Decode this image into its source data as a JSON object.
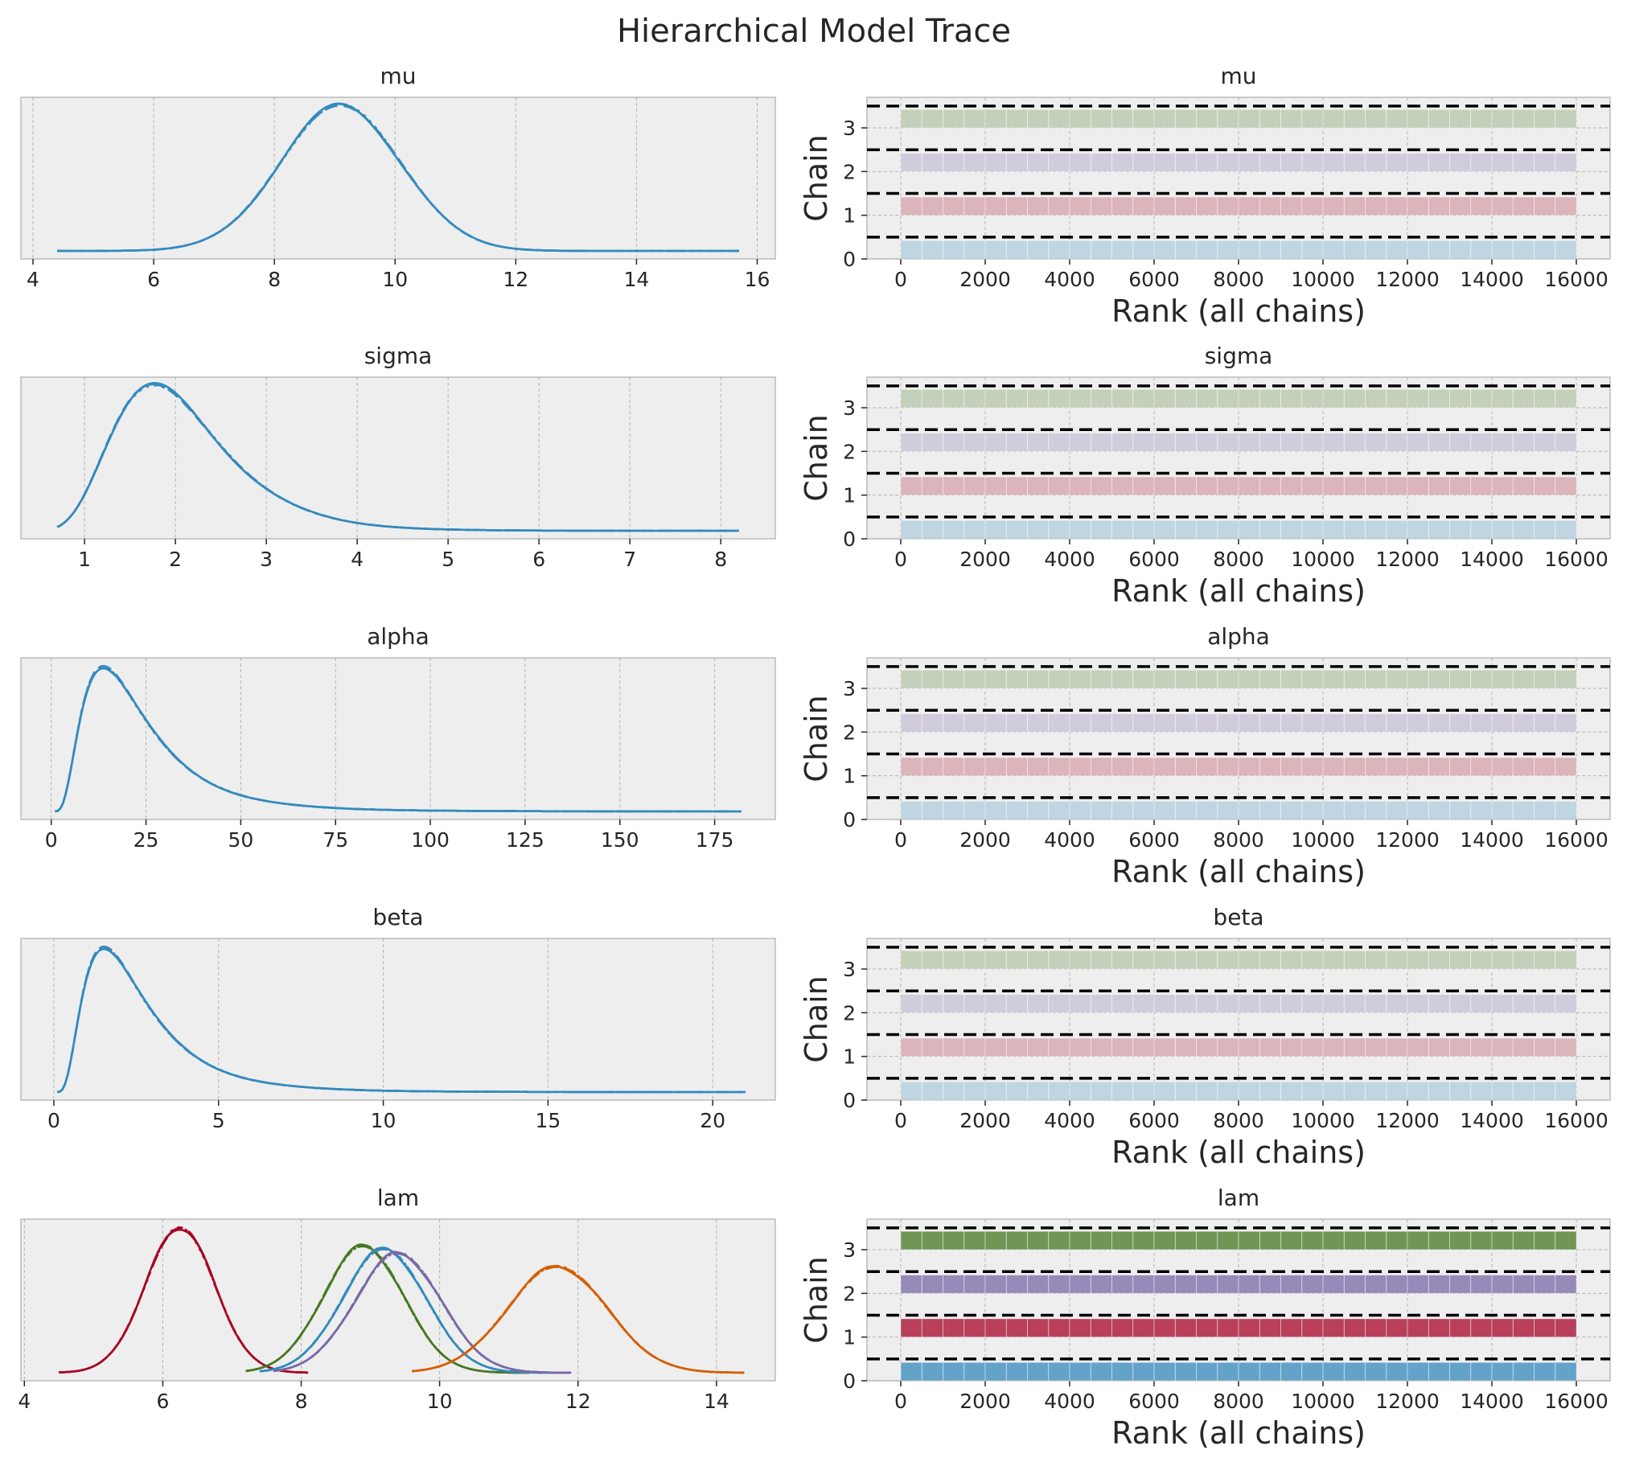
{
  "figure_title": "Hierarchical Model Trace",
  "colors": {
    "axes_bg": "#eeeeee",
    "grid": "#b2b2b2",
    "spine": "#bcbcbc",
    "kde_single": "#348abd",
    "chain_dash": "#000000",
    "chain_fills": [
      "#348abd",
      "#a60628",
      "#7a68a6",
      "#467821"
    ],
    "lam_series": [
      "#a60628",
      "#467821",
      "#348abd",
      "#7a68a6",
      "#d55e00"
    ]
  },
  "chart_data": [
    {
      "type": "line",
      "panel": "kde",
      "title": "mu",
      "xlim": [
        3.8,
        16.3
      ],
      "xticks": [
        4,
        6,
        8,
        10,
        12,
        14,
        16
      ],
      "series": [
        {
          "name": "",
          "dist": "normal",
          "mu": 9.1,
          "sd": 1.0,
          "x": [
            4.4,
            15.7
          ]
        }
      ]
    },
    {
      "type": "bar",
      "panel": "rank",
      "title": "mu",
      "xlabel": "Rank (all chains)",
      "ylabel": "Chain",
      "xlim": [
        -800,
        16800
      ],
      "ylim": [
        0,
        3.7
      ],
      "xticks": [
        0,
        2000,
        4000,
        6000,
        8000,
        10000,
        12000,
        14000,
        16000
      ],
      "yticks": [
        0,
        1,
        2,
        3
      ],
      "chains": [
        0,
        1,
        2,
        3
      ],
      "bar_height": 0.42,
      "bins": 32,
      "opacity": 0.25
    },
    {
      "type": "line",
      "panel": "kde",
      "title": "sigma",
      "xlim": [
        0.3,
        8.6
      ],
      "xticks": [
        1,
        2,
        3,
        4,
        5,
        6,
        7,
        8
      ],
      "series": [
        {
          "name": "",
          "dist": "lognormal",
          "mu": 0.68,
          "sd": 0.34,
          "x": [
            0.7,
            8.2
          ]
        }
      ]
    },
    {
      "type": "bar",
      "panel": "rank",
      "title": "sigma",
      "xlabel": "Rank (all chains)",
      "ylabel": "Chain",
      "xlim": [
        -800,
        16800
      ],
      "ylim": [
        0,
        3.7
      ],
      "xticks": [
        0,
        2000,
        4000,
        6000,
        8000,
        10000,
        12000,
        14000,
        16000
      ],
      "yticks": [
        0,
        1,
        2,
        3
      ],
      "chains": [
        0,
        1,
        2,
        3
      ],
      "bar_height": 0.42,
      "bins": 32,
      "opacity": 0.25
    },
    {
      "type": "line",
      "panel": "kde",
      "title": "alpha",
      "xlim": [
        -8,
        191
      ],
      "xticks": [
        0,
        25,
        50,
        75,
        100,
        125,
        150,
        175
      ],
      "series": [
        {
          "name": "",
          "dist": "lognormal",
          "mu": 3.0,
          "sd": 0.62,
          "x": [
            1,
            182
          ]
        }
      ]
    },
    {
      "type": "bar",
      "panel": "rank",
      "title": "alpha",
      "xlabel": "Rank (all chains)",
      "ylabel": "Chain",
      "xlim": [
        -800,
        16800
      ],
      "ylim": [
        0,
        3.7
      ],
      "xticks": [
        0,
        2000,
        4000,
        6000,
        8000,
        10000,
        12000,
        14000,
        16000
      ],
      "yticks": [
        0,
        1,
        2,
        3
      ],
      "chains": [
        0,
        1,
        2,
        3
      ],
      "bar_height": 0.42,
      "bins": 32,
      "opacity": 0.25
    },
    {
      "type": "line",
      "panel": "kde",
      "title": "beta",
      "xlim": [
        -1,
        21.9
      ],
      "xticks": [
        0,
        5,
        10,
        15,
        20
      ],
      "series": [
        {
          "name": "",
          "dist": "lognormal",
          "mu": 0.8,
          "sd": 0.62,
          "x": [
            0.1,
            21
          ]
        }
      ]
    },
    {
      "type": "bar",
      "panel": "rank",
      "title": "beta",
      "xlabel": "Rank (all chains)",
      "ylabel": "Chain",
      "xlim": [
        -800,
        16800
      ],
      "ylim": [
        0,
        3.7
      ],
      "xticks": [
        0,
        2000,
        4000,
        6000,
        8000,
        10000,
        12000,
        14000,
        16000
      ],
      "yticks": [
        0,
        1,
        2,
        3
      ],
      "chains": [
        0,
        1,
        2,
        3
      ],
      "bar_height": 0.42,
      "bins": 32,
      "opacity": 0.25
    },
    {
      "type": "line",
      "panel": "kde",
      "title": "lam",
      "xlim": [
        3.95,
        14.85
      ],
      "xticks": [
        4,
        6,
        8,
        10,
        12,
        14
      ],
      "series": [
        {
          "name": "",
          "dist": "normal",
          "mu": 6.25,
          "sd": 0.5,
          "x": [
            4.5,
            8.1
          ],
          "peak": 1.0
        },
        {
          "name": "",
          "dist": "normal",
          "mu": 8.9,
          "sd": 0.58,
          "x": [
            7.2,
            11.3
          ],
          "peak": 0.87
        },
        {
          "name": "",
          "dist": "normal",
          "mu": 9.2,
          "sd": 0.6,
          "x": [
            7.4,
            11.7
          ],
          "peak": 0.85
        },
        {
          "name": "",
          "dist": "normal",
          "mu": 9.4,
          "sd": 0.62,
          "x": [
            7.6,
            11.9
          ],
          "peak": 0.82
        },
        {
          "name": "",
          "dist": "normal",
          "mu": 11.7,
          "sd": 0.72,
          "x": [
            9.6,
            14.4
          ],
          "peak": 0.73
        }
      ]
    },
    {
      "type": "bar",
      "panel": "rank",
      "title": "lam",
      "xlabel": "Rank (all chains)",
      "ylabel": "Chain",
      "xlim": [
        -800,
        16800
      ],
      "ylim": [
        0,
        3.7
      ],
      "xticks": [
        0,
        2000,
        4000,
        6000,
        8000,
        10000,
        12000,
        14000,
        16000
      ],
      "yticks": [
        0,
        1,
        2,
        3
      ],
      "chains": [
        0,
        1,
        2,
        3
      ],
      "bar_height": 0.42,
      "bins": 32,
      "opacity": 0.75
    }
  ]
}
